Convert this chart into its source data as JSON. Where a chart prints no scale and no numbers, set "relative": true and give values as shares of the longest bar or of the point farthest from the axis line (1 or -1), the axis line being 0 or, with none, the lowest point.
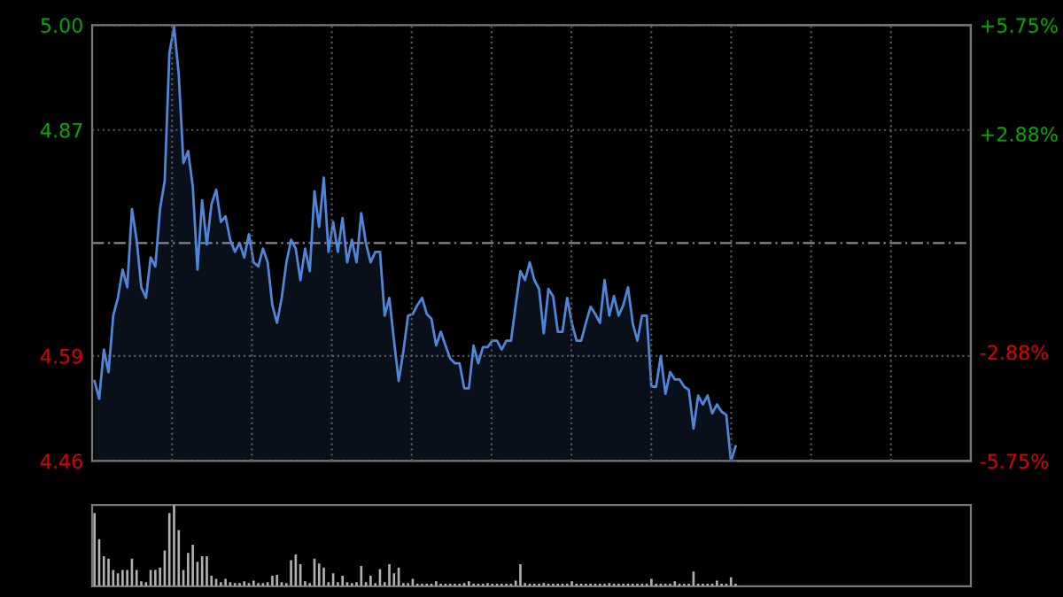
{
  "chart_data": [
    {
      "type": "area",
      "categories": [
        null,
        null,
        null,
        null,
        null,
        null,
        null,
        null,
        null,
        null,
        null,
        null,
        null,
        null,
        null,
        null,
        null,
        null,
        null,
        null,
        null,
        null,
        null,
        null,
        null,
        null,
        null,
        null,
        null,
        null,
        null,
        null,
        null,
        null,
        null,
        null,
        null,
        null,
        null,
        null,
        null,
        null,
        null,
        null,
        null,
        null,
        null,
        null,
        null,
        null,
        null,
        null,
        null,
        null,
        null,
        null,
        null,
        null,
        null,
        null,
        null,
        null,
        null,
        null,
        null,
        null,
        null,
        null,
        null,
        null,
        null,
        null,
        null,
        null,
        null,
        null,
        null,
        null,
        null,
        null,
        null,
        null,
        null,
        null,
        null,
        null,
        null,
        null,
        null,
        null,
        null,
        null,
        null,
        null,
        null,
        null,
        null,
        null,
        null,
        null,
        null,
        null,
        null,
        null,
        null,
        null,
        null,
        null,
        null,
        null,
        null,
        null,
        null,
        null,
        null,
        null,
        null,
        null,
        null,
        null,
        null,
        null,
        null,
        null,
        null,
        null,
        null,
        null,
        null,
        null,
        null,
        null,
        null,
        null,
        null,
        null,
        null,
        null
      ],
      "series": [
        {
          "color": "#4f86d9",
          "values": [
            4.559,
            4.537,
            4.598,
            4.57,
            4.64,
            4.662,
            4.697,
            4.675,
            4.772,
            4.734,
            4.675,
            4.662,
            4.712,
            4.701,
            4.772,
            4.807,
            4.965,
            4.998,
            4.939,
            4.829,
            4.844,
            4.8,
            4.697,
            4.783,
            4.728,
            4.778,
            4.796,
            4.756,
            4.763,
            4.734,
            4.719,
            4.73,
            4.712,
            4.741,
            4.706,
            4.701,
            4.723,
            4.706,
            4.653,
            4.631,
            4.662,
            4.706,
            4.734,
            4.723,
            4.684,
            4.723,
            4.695,
            4.794,
            4.75,
            4.811,
            4.719,
            4.756,
            4.719,
            4.761,
            4.706,
            4.734,
            4.706,
            4.767,
            4.73,
            4.706,
            4.719,
            4.719,
            4.64,
            4.662,
            4.609,
            4.559,
            4.596,
            4.64,
            4.642,
            4.653,
            4.662,
            4.642,
            4.636,
            4.603,
            4.62,
            4.603,
            4.587,
            4.581,
            4.581,
            4.55,
            4.55,
            4.603,
            4.581,
            4.601,
            4.601,
            4.609,
            4.609,
            4.598,
            4.609,
            4.609,
            4.653,
            4.695,
            4.684,
            4.706,
            4.684,
            4.673,
            4.618,
            4.673,
            4.664,
            4.62,
            4.62,
            4.662,
            4.631,
            4.609,
            4.609,
            4.631,
            4.651,
            4.642,
            4.631,
            4.684,
            4.64,
            4.664,
            4.64,
            4.653,
            4.675,
            4.631,
            4.609,
            4.64,
            4.64,
            4.552,
            4.552,
            4.59,
            4.543,
            4.57,
            4.561,
            4.561,
            4.552,
            4.548,
            4.5,
            4.541,
            4.53,
            4.541,
            4.519,
            4.53,
            4.521,
            4.517,
            4.46,
            4.478
          ]
        }
      ],
      "ylim": [
        4.46,
        5.0
      ],
      "yticks": [
        {
          "value": 4.46,
          "label": "4.46"
        },
        {
          "value": 4.59,
          "label": "4.59"
        },
        {
          "value": 4.87,
          "label": "4.87"
        },
        {
          "value": 5.0,
          "label": "5.00"
        }
      ],
      "y2lim": [
        -5.75,
        5.75
      ],
      "y2ticks": [
        {
          "value": -5.75,
          "label": "-5.75%"
        },
        {
          "value": -2.88,
          "label": "-2.88%"
        },
        {
          "value": 2.88,
          "label": "+2.88%"
        },
        {
          "value": 5.75,
          "label": "+5.75%"
        }
      ],
      "ref_lines": [
        {
          "axis": "y",
          "value": 4.73,
          "line_style": "dashed"
        }
      ],
      "grid": true,
      "tick_labels": "y"
    },
    {
      "type": "bar",
      "relative": true,
      "categories": [
        null,
        null,
        null,
        null,
        null,
        null,
        null,
        null,
        null,
        null,
        null,
        null,
        null,
        null,
        null,
        null,
        null,
        null,
        null,
        null,
        null,
        null,
        null,
        null,
        null,
        null,
        null,
        null,
        null,
        null,
        null,
        null,
        null,
        null,
        null,
        null,
        null,
        null,
        null,
        null,
        null,
        null,
        null,
        null,
        null,
        null,
        null,
        null,
        null,
        null,
        null,
        null,
        null,
        null,
        null,
        null,
        null,
        null,
        null,
        null,
        null,
        null,
        null,
        null,
        null,
        null,
        null,
        null,
        null,
        null,
        null,
        null,
        null,
        null,
        null,
        null,
        null,
        null,
        null,
        null,
        null,
        null,
        null,
        null,
        null,
        null,
        null,
        null,
        null,
        null,
        null,
        null,
        null,
        null,
        null,
        null,
        null,
        null,
        null,
        null,
        null,
        null,
        null,
        null,
        null,
        null,
        null,
        null,
        null,
        null,
        null,
        null,
        null,
        null,
        null,
        null,
        null,
        null,
        null,
        null,
        null,
        null,
        null,
        null,
        null,
        null,
        null,
        null,
        null,
        null,
        null,
        null,
        null,
        null,
        null,
        null,
        null,
        null
      ],
      "series": [
        {
          "color": "#b0b0b0",
          "values": [
            0.9,
            0.58,
            0.37,
            0.34,
            0.2,
            0.16,
            0.2,
            0.2,
            0.34,
            0.2,
            0.06,
            0.05,
            0.2,
            0.2,
            0.23,
            0.44,
            0.9,
            1.0,
            0.69,
            0.2,
            0.41,
            0.51,
            0.3,
            0.37,
            0.37,
            0.13,
            0.09,
            0.05,
            0.09,
            0.05,
            0.04,
            0.04,
            0.06,
            0.04,
            0.07,
            0.04,
            0.04,
            0.05,
            0.13,
            0.14,
            0.05,
            0.04,
            0.32,
            0.39,
            0.27,
            0.06,
            0.04,
            0.34,
            0.28,
            0.23,
            0.05,
            0.16,
            0.05,
            0.13,
            0.05,
            0.04,
            0.05,
            0.25,
            0.05,
            0.13,
            0.04,
            0.21,
            0.05,
            0.27,
            0.16,
            0.23,
            0.04,
            0.04,
            0.09,
            0.03,
            0.03,
            0.03,
            0.03,
            0.06,
            0.03,
            0.03,
            0.03,
            0.03,
            0.03,
            0.04,
            0.06,
            0.03,
            0.03,
            0.03,
            0.04,
            0.03,
            0.03,
            0.03,
            0.03,
            0.03,
            0.07,
            0.27,
            0.04,
            0.03,
            0.03,
            0.03,
            0.04,
            0.03,
            0.03,
            0.03,
            0.03,
            0.03,
            0.06,
            0.03,
            0.03,
            0.03,
            0.03,
            0.03,
            0.03,
            0.03,
            0.04,
            0.03,
            0.03,
            0.03,
            0.03,
            0.03,
            0.03,
            0.03,
            0.03,
            0.09,
            0.03,
            0.03,
            0.03,
            0.03,
            0.06,
            0.03,
            0.03,
            0.03,
            0.18,
            0.03,
            0.03,
            0.03,
            0.03,
            0.07,
            0.03,
            0.03,
            0.11,
            0.03
          ]
        }
      ],
      "tick_labels": false
    }
  ]
}
